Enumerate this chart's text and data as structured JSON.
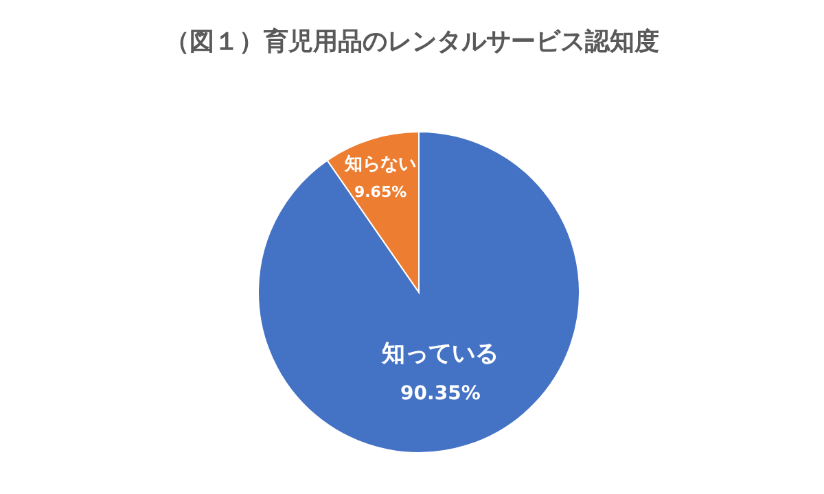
{
  "chart_data": {
    "type": "pie",
    "title": "（図１）育児用品のレンタルサービス認知度",
    "categories": [
      "知っている",
      "知らない"
    ],
    "values": [
      90.35,
      9.65
    ],
    "colors": [
      "#4472c4",
      "#ed7d31"
    ],
    "value_labels": [
      "90.35%",
      "9.65%"
    ],
    "legend": false
  }
}
